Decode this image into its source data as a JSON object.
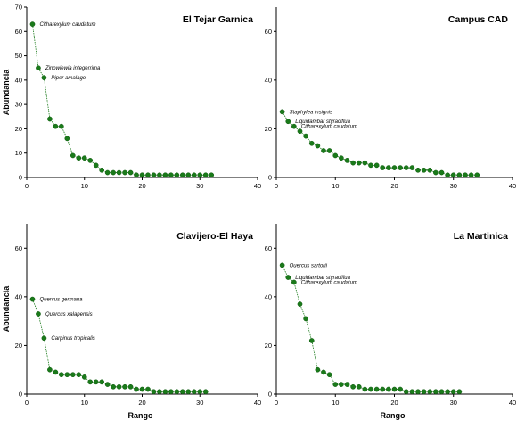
{
  "colors": {
    "series": "#1a7a1a",
    "marker_stroke": "#0f5a0f"
  },
  "chart_data": [
    {
      "type": "line",
      "title": "El Tejar Garnica",
      "xlabel": "",
      "ylabel": "Abundancia",
      "xlim": [
        0,
        40
      ],
      "ylim": [
        0,
        70
      ],
      "xticks": [
        0,
        10,
        20,
        30,
        40
      ],
      "yticks": [
        0,
        10,
        20,
        30,
        40,
        50,
        60,
        70
      ],
      "series": [
        {
          "x": [
            1,
            2,
            3,
            4,
            5,
            6,
            7,
            8,
            9,
            10,
            11,
            12,
            13,
            14,
            15,
            16,
            17,
            18,
            19,
            20,
            21,
            22,
            23,
            24,
            25,
            26,
            27,
            28,
            29,
            30,
            31,
            32
          ],
          "values": [
            63,
            45,
            41,
            24,
            21,
            21,
            16,
            9,
            8,
            8,
            7,
            5,
            3,
            2,
            2,
            2,
            2,
            2,
            1,
            1,
            1,
            1,
            1,
            1,
            1,
            1,
            1,
            1,
            1,
            1,
            1,
            1
          ]
        }
      ],
      "annotations": [
        {
          "text": "Citharexylum caudatum",
          "x": 1,
          "y": 63
        },
        {
          "text": "Zinowiewia integerrima",
          "x": 2,
          "y": 45
        },
        {
          "text": "Piper amalago",
          "x": 3,
          "y": 41
        }
      ]
    },
    {
      "type": "line",
      "title": "Campus CAD",
      "xlabel": "",
      "ylabel": "",
      "xlim": [
        0,
        40
      ],
      "ylim": [
        0,
        70
      ],
      "xticks": [
        0,
        10,
        20,
        30,
        40
      ],
      "yticks": [
        0,
        20,
        40,
        60
      ],
      "series": [
        {
          "x": [
            1,
            2,
            3,
            4,
            5,
            6,
            7,
            8,
            9,
            10,
            11,
            12,
            13,
            14,
            15,
            16,
            17,
            18,
            19,
            20,
            21,
            22,
            23,
            24,
            25,
            26,
            27,
            28,
            29,
            30,
            31,
            32,
            33,
            34
          ],
          "values": [
            27,
            23,
            21,
            19,
            17,
            14,
            13,
            11,
            11,
            9,
            8,
            7,
            6,
            6,
            6,
            5,
            5,
            4,
            4,
            4,
            4,
            4,
            4,
            3,
            3,
            3,
            2,
            2,
            1,
            1,
            1,
            1,
            1,
            1
          ]
        }
      ],
      "annotations": [
        {
          "text": "Staphylea insignis",
          "x": 1,
          "y": 27
        },
        {
          "text": "Liquidambar styraciflua",
          "x": 2,
          "y": 23
        },
        {
          "text": "Citharexylum caudatum",
          "x": 3,
          "y": 21
        }
      ]
    },
    {
      "type": "line",
      "title": "Clavijero-El Haya",
      "xlabel": "Rango",
      "ylabel": "Abundancia",
      "xlim": [
        0,
        40
      ],
      "ylim": [
        0,
        70
      ],
      "xticks": [
        0,
        10,
        20,
        30,
        40
      ],
      "yticks": [
        0,
        20,
        40,
        60
      ],
      "series": [
        {
          "x": [
            1,
            2,
            3,
            4,
            5,
            6,
            7,
            8,
            9,
            10,
            11,
            12,
            13,
            14,
            15,
            16,
            17,
            18,
            19,
            20,
            21,
            22,
            23,
            24,
            25,
            26,
            27,
            28,
            29,
            30,
            31
          ],
          "values": [
            39,
            33,
            23,
            10,
            9,
            8,
            8,
            8,
            8,
            7,
            5,
            5,
            5,
            4,
            3,
            3,
            3,
            3,
            2,
            2,
            2,
            1,
            1,
            1,
            1,
            1,
            1,
            1,
            1,
            1,
            1
          ]
        }
      ],
      "annotations": [
        {
          "text": "Quercus germana",
          "x": 1,
          "y": 39
        },
        {
          "text": "Quercus xalapensis",
          "x": 2,
          "y": 33
        },
        {
          "text": "Carpinus tropicalis",
          "x": 3,
          "y": 23
        }
      ]
    },
    {
      "type": "line",
      "title": "La Martinica",
      "xlabel": "Rango",
      "ylabel": "",
      "xlim": [
        0,
        40
      ],
      "ylim": [
        0,
        70
      ],
      "xticks": [
        0,
        10,
        20,
        30,
        40
      ],
      "yticks": [
        0,
        20,
        40,
        60
      ],
      "series": [
        {
          "x": [
            1,
            2,
            3,
            4,
            5,
            6,
            7,
            8,
            9,
            10,
            11,
            12,
            13,
            14,
            15,
            16,
            17,
            18,
            19,
            20,
            21,
            22,
            23,
            24,
            25,
            26,
            27,
            28,
            29,
            30,
            31
          ],
          "values": [
            53,
            48,
            46,
            37,
            31,
            22,
            10,
            9,
            8,
            4,
            4,
            4,
            3,
            3,
            2,
            2,
            2,
            2,
            2,
            2,
            2,
            1,
            1,
            1,
            1,
            1,
            1,
            1,
            1,
            1,
            1
          ]
        }
      ],
      "annotations": [
        {
          "text": "Quercus sartorii",
          "x": 1,
          "y": 53
        },
        {
          "text": "Liquidambar styraciflua",
          "x": 2,
          "y": 48
        },
        {
          "text": "Citharexylum caudatum",
          "x": 3,
          "y": 46
        }
      ]
    }
  ]
}
